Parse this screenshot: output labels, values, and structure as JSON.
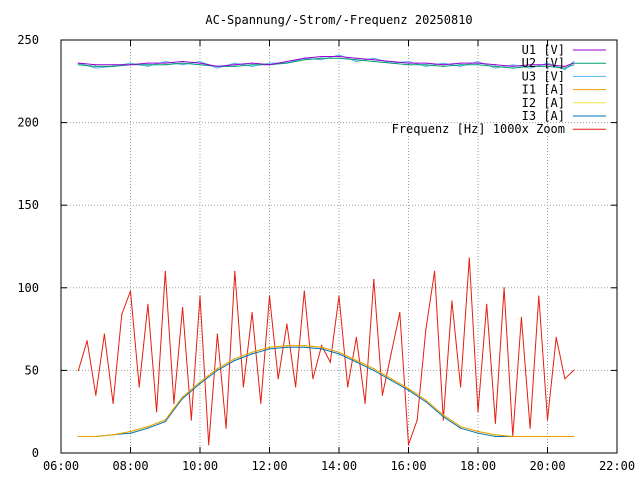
{
  "chart_data": {
    "type": "line",
    "title": "AC-Spannung/-Strom/-Frequenz 20250810",
    "xlabel": "",
    "ylabel": "",
    "xlim": [
      "06:00",
      "22:00"
    ],
    "ylim": [
      0,
      250
    ],
    "x_ticks": [
      "06:00",
      "08:00",
      "10:00",
      "12:00",
      "14:00",
      "16:00",
      "18:00",
      "20:00",
      "22:00"
    ],
    "y_ticks": [
      "0",
      "50",
      "100",
      "150",
      "200",
      "250"
    ],
    "grid": true,
    "legend_position": "top-right",
    "series": [
      {
        "name": "U1 [V]",
        "color": "#9400d3",
        "x": [
          "06:30",
          "07:00",
          "07:30",
          "08:00",
          "08:30",
          "09:00",
          "09:30",
          "10:00",
          "10:30",
          "11:00",
          "11:30",
          "12:00",
          "12:30",
          "13:00",
          "13:30",
          "14:00",
          "14:30",
          "15:00",
          "15:30",
          "16:00",
          "16:30",
          "17:00",
          "17:30",
          "18:00",
          "18:30",
          "19:00",
          "19:30",
          "20:00",
          "20:30",
          "20:45"
        ],
        "values": [
          236,
          235,
          235,
          235,
          236,
          236,
          237,
          236,
          234,
          235,
          236,
          235,
          237,
          239,
          240,
          240,
          239,
          238,
          237,
          236,
          236,
          235,
          236,
          236,
          235,
          234,
          235,
          235,
          234,
          236
        ]
      },
      {
        "name": "U2 [V]",
        "color": "#009e73",
        "x": [
          "06:30",
          "07:00",
          "07:30",
          "08:00",
          "08:30",
          "09:00",
          "09:30",
          "10:00",
          "10:30",
          "11:00",
          "11:30",
          "12:00",
          "12:30",
          "13:00",
          "13:30",
          "14:00",
          "14:30",
          "15:00",
          "15:30",
          "16:00",
          "16:30",
          "17:00",
          "17:30",
          "18:00",
          "18:30",
          "19:00",
          "19:30",
          "20:00",
          "20:30",
          "20:45"
        ],
        "values": [
          235,
          234,
          234,
          235,
          235,
          235,
          236,
          235,
          234,
          234,
          235,
          235,
          236,
          238,
          239,
          239,
          238,
          237,
          236,
          235,
          235,
          234,
          235,
          235,
          234,
          233,
          234,
          234,
          233,
          235
        ]
      },
      {
        "name": "U3 [V]",
        "color": "#56b4e9",
        "x": [
          "06:30",
          "07:00",
          "07:30",
          "08:00",
          "08:30",
          "09:00",
          "09:30",
          "10:00",
          "10:30",
          "11:00",
          "11:30",
          "12:00",
          "12:30",
          "13:00",
          "13:30",
          "14:00",
          "14:30",
          "15:00",
          "15:30",
          "16:00",
          "16:30",
          "17:00",
          "17:30",
          "18:00",
          "18:30",
          "19:00",
          "19:30",
          "20:00",
          "20:30",
          "20:45"
        ],
        "values": [
          236,
          233,
          234,
          236,
          234,
          237,
          235,
          237,
          233,
          236,
          234,
          236,
          236,
          239,
          238,
          241,
          237,
          239,
          236,
          237,
          234,
          236,
          234,
          237,
          233,
          235,
          233,
          236,
          232,
          237
        ]
      },
      {
        "name": "I1 [A]",
        "color": "#e69f00",
        "x": [
          "06:30",
          "07:00",
          "07:30",
          "08:00",
          "08:30",
          "09:00",
          "09:15",
          "09:30",
          "10:00",
          "10:30",
          "11:00",
          "11:30",
          "12:00",
          "12:30",
          "13:00",
          "13:30",
          "14:00",
          "14:30",
          "15:00",
          "15:30",
          "16:00",
          "16:30",
          "17:00",
          "17:30",
          "18:00",
          "18:30",
          "19:00",
          "19:30",
          "20:00",
          "20:45"
        ],
        "values": [
          10,
          10,
          11,
          13,
          16,
          20,
          27,
          34,
          43,
          51,
          57,
          61,
          64,
          65,
          65,
          64,
          61,
          56,
          51,
          45,
          39,
          32,
          23,
          16,
          13,
          11,
          10,
          10,
          10,
          10
        ]
      },
      {
        "name": "I2 [A]",
        "color": "#f0e442",
        "x": [
          "06:30",
          "07:00",
          "07:30",
          "08:00",
          "08:30",
          "09:00",
          "09:15",
          "09:30",
          "10:00",
          "10:30",
          "11:00",
          "11:30",
          "12:00",
          "12:30",
          "13:00",
          "13:30",
          "14:00",
          "14:30",
          "15:00",
          "15:30",
          "16:00",
          "16:30",
          "17:00",
          "17:30",
          "18:00",
          "18:30",
          "19:00",
          "19:30",
          "20:00",
          "20:45"
        ],
        "values": [
          10,
          10,
          11,
          13,
          16,
          20,
          27,
          34,
          43,
          51,
          57,
          61,
          64,
          65,
          65,
          64,
          61,
          56,
          51,
          45,
          39,
          32,
          23,
          16,
          13,
          11,
          10,
          10,
          10,
          10
        ]
      },
      {
        "name": "I3 [A]",
        "color": "#0072b2",
        "x": [
          "06:30",
          "07:00",
          "07:30",
          "08:00",
          "08:30",
          "09:00",
          "09:15",
          "09:30",
          "10:00",
          "10:30",
          "11:00",
          "11:30",
          "12:00",
          "12:30",
          "13:00",
          "13:30",
          "14:00",
          "14:30",
          "15:00",
          "15:30",
          "16:00",
          "16:30",
          "17:00",
          "17:30",
          "18:00",
          "18:30",
          "19:00",
          "19:30",
          "20:00",
          "20:45"
        ],
        "values": [
          10,
          10,
          11,
          12,
          15,
          19,
          26,
          33,
          42,
          50,
          56,
          60,
          63,
          64,
          64,
          63,
          60,
          55,
          50,
          44,
          38,
          31,
          22,
          15,
          12,
          10,
          10,
          10,
          10,
          10
        ]
      },
      {
        "name": "Frequenz [Hz] 1000x Zoom",
        "color": "#e51e10",
        "x": [
          "06:30",
          "06:45",
          "07:00",
          "07:15",
          "07:30",
          "07:45",
          "08:00",
          "08:15",
          "08:30",
          "08:45",
          "09:00",
          "09:15",
          "09:30",
          "09:45",
          "10:00",
          "10:15",
          "10:30",
          "10:45",
          "11:00",
          "11:15",
          "11:30",
          "11:45",
          "12:00",
          "12:15",
          "12:30",
          "12:45",
          "13:00",
          "13:15",
          "13:30",
          "13:45",
          "14:00",
          "14:15",
          "14:30",
          "14:45",
          "15:00",
          "15:15",
          "15:30",
          "15:45",
          "16:00",
          "16:15",
          "16:30",
          "16:45",
          "17:00",
          "17:15",
          "17:30",
          "17:45",
          "18:00",
          "18:15",
          "18:30",
          "18:45",
          "19:00",
          "19:15",
          "19:30",
          "19:45",
          "20:00",
          "20:15",
          "20:30",
          "20:45"
        ],
        "values": [
          50,
          68,
          35,
          72,
          30,
          84,
          98,
          40,
          90,
          25,
          110,
          30,
          88,
          20,
          95,
          5,
          72,
          15,
          110,
          40,
          85,
          30,
          95,
          45,
          78,
          40,
          98,
          45,
          65,
          55,
          95,
          40,
          70,
          30,
          105,
          35,
          60,
          85,
          5,
          20,
          75,
          110,
          20,
          92,
          40,
          118,
          25,
          90,
          18,
          100,
          10,
          82,
          15,
          95,
          20,
          70,
          45,
          50
        ]
      }
    ]
  }
}
